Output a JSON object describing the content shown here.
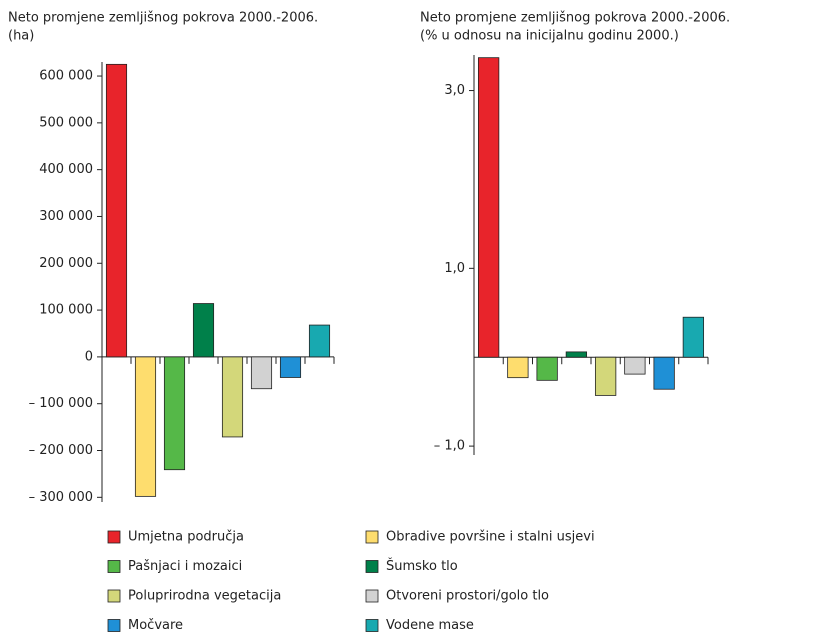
{
  "chart_data": [
    {
      "type": "bar",
      "title": "Neto promjene zemljišnog pokrova 2000.-2006.",
      "subtitle": "(ha)",
      "categories": [
        "Umjetna područja",
        "Obradive površine i stalni usjevi",
        "Pašnjaci i mozaici",
        "Šumsko tlo",
        "Poluprirodna vegetacija",
        "Otvoreni prostori/golo tlo",
        "Močvare",
        "Vodene mase"
      ],
      "colors": [
        "#e8242b",
        "#fedd6e",
        "#55b848",
        "#00804a",
        "#d3d77a",
        "#d2d2d2",
        "#1f90d6",
        "#18a9b0"
      ],
      "values": [
        625000,
        -298000,
        -241000,
        114000,
        -171000,
        -68000,
        -44000,
        68000
      ],
      "ylim": [
        -310000,
        630000
      ],
      "yticks": [
        {
          "value": -300000,
          "label": "– 300 000"
        },
        {
          "value": -200000,
          "label": "– 200 000"
        },
        {
          "value": -100000,
          "label": "– 100 000"
        },
        0,
        {
          "value": 100000,
          "label": "100 000"
        },
        {
          "value": 200000,
          "label": "200 000"
        },
        {
          "value": 300000,
          "label": "300 000"
        },
        {
          "value": 400000,
          "label": "400 000"
        },
        {
          "value": 500000,
          "label": "500 000"
        },
        {
          "value": 600000,
          "label": "600 000"
        }
      ]
    },
    {
      "type": "bar",
      "title": "Neto promjene zemljišnog pokrova 2000.-2006.",
      "subtitle": "(% u odnosu na inicijalnu godinu 2000.)",
      "categories": [
        "Umjetna područja",
        "Obradive površine i stalni usjevi",
        "Pašnjaci i mozaici",
        "Šumsko tlo",
        "Poluprirodna vegetacija",
        "Otvoreni prostori/golo tlo",
        "Močvare",
        "Vodene mase"
      ],
      "colors": [
        "#e8242b",
        "#fedd6e",
        "#55b848",
        "#00804a",
        "#d3d77a",
        "#d2d2d2",
        "#1f90d6",
        "#18a9b0"
      ],
      "values": [
        3.37,
        -0.23,
        -0.26,
        0.06,
        -0.43,
        -0.19,
        -0.36,
        0.45
      ],
      "ylim": [
        -1.1,
        3.4
      ],
      "yticks": [
        {
          "value": -1.0,
          "label": "– 1,0"
        },
        {
          "value": 1.0,
          "label": "1,0"
        },
        {
          "value": 3.0,
          "label": "3,0"
        }
      ]
    }
  ]
}
